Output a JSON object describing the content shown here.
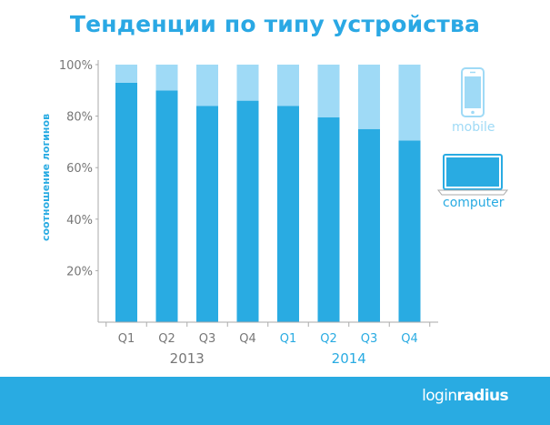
{
  "header": {
    "title": "Тенденции по типу устройства"
  },
  "chart_data": {
    "type": "bar",
    "stacked": true,
    "ylabel": "соотношение логинов",
    "ylim": [
      0,
      100
    ],
    "y_ticks": [
      "20%",
      "40%",
      "60%",
      "80%",
      "100%"
    ],
    "categories": [
      "Q1",
      "Q2",
      "Q3",
      "Q4",
      "Q1",
      "Q2",
      "Q3",
      "Q4"
    ],
    "year_groups": [
      {
        "label": "2013",
        "color": "#777777"
      },
      {
        "label": "2014",
        "color": "#29abe2"
      }
    ],
    "category_year": [
      0,
      0,
      0,
      0,
      1,
      1,
      1,
      1
    ],
    "series": [
      {
        "name": "computer",
        "color": "#29abe2",
        "values": [
          93,
          90,
          84,
          86,
          84,
          79.5,
          75,
          70.5
        ]
      },
      {
        "name": "mobile",
        "color": "#9fdaf6",
        "values": [
          7,
          10,
          16,
          14,
          16,
          20.5,
          25,
          29.5
        ]
      }
    ],
    "grid": false,
    "legend": "right"
  },
  "legend": {
    "mobile_label": "mobile",
    "computer_label": "computer",
    "mobile_icon": "phone-icon",
    "computer_icon": "laptop-icon"
  },
  "footer": {
    "logo_part1": "login",
    "logo_part2": "radius",
    "bg": "#29abe2"
  }
}
